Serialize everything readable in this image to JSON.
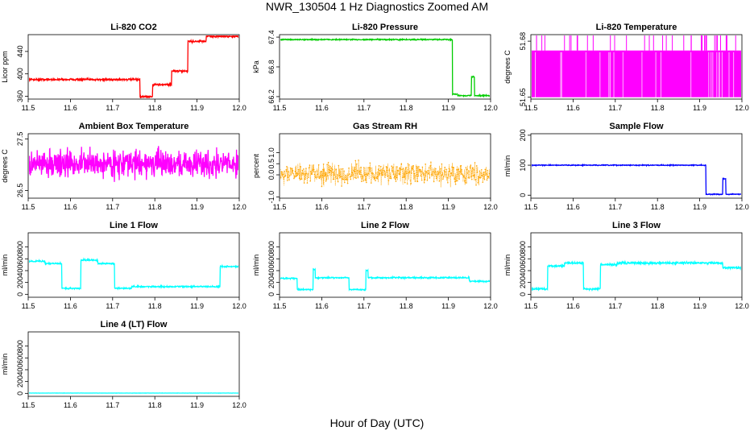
{
  "title": "NWR_130504  1 Hz Diagnostics Zoomed AM",
  "xlabel": "Hour of Day (UTC)",
  "chart_data": [
    {
      "type": "line",
      "title": "Li-820 CO2",
      "ylabel": "Licor ppm",
      "color": "#ff0000",
      "xlim": [
        11.5,
        12.0
      ],
      "ylim": [
        355,
        470
      ],
      "yticks": [
        360,
        400,
        440
      ],
      "ytick_labels": [
        "360",
        "400",
        "440"
      ],
      "xticks": [
        11.5,
        11.6,
        11.7,
        11.8,
        11.9,
        12.0
      ],
      "xtick_labels": [
        "11.5",
        "11.6",
        "11.7",
        "11.8",
        "11.9",
        "12.0"
      ],
      "noise": 1.2,
      "segments": [
        [
          11.5,
          11.765,
          390
        ],
        [
          11.765,
          11.795,
          359
        ],
        [
          11.795,
          11.84,
          381
        ],
        [
          11.84,
          11.878,
          405
        ],
        [
          11.878,
          11.922,
          458
        ],
        [
          11.922,
          12.0,
          467
        ]
      ]
    },
    {
      "type": "line",
      "title": "Li-820 Pressure",
      "ylabel": "kPa",
      "color": "#00cc00",
      "xlim": [
        11.5,
        12.0
      ],
      "ylim": [
        66.15,
        67.45
      ],
      "yticks": [
        66.2,
        66.8,
        67.4
      ],
      "ytick_labels": [
        "66.2",
        "66.8",
        "67.4"
      ],
      "xticks": [
        11.5,
        11.6,
        11.7,
        11.8,
        11.9,
        12.0
      ],
      "xtick_labels": [
        "11.5",
        "11.6",
        "11.7",
        "11.8",
        "11.9",
        "12.0"
      ],
      "noise": 0.008,
      "segments": [
        [
          11.5,
          11.91,
          67.35
        ],
        [
          11.91,
          11.922,
          66.25
        ],
        [
          11.922,
          11.955,
          66.22
        ],
        [
          11.955,
          11.962,
          66.6
        ],
        [
          11.962,
          12.0,
          66.22
        ]
      ]
    },
    {
      "type": "line",
      "title": "Li-820 Temperature",
      "ylabel": "degrees C",
      "color": "#ff00ff",
      "xlim": [
        11.5,
        12.0
      ],
      "ylim": [
        51.649,
        51.6835
      ],
      "yticks": [
        51.65,
        51.68
      ],
      "ytick_labels": [
        "51.65",
        "51.68"
      ],
      "xticks": [
        11.5,
        11.6,
        11.7,
        11.8,
        11.9,
        12.0
      ],
      "xtick_labels": [
        "11.5",
        "11.6",
        "11.7",
        "11.8",
        "11.9",
        "12.0"
      ],
      "band": [
        51.65,
        51.675
      ],
      "spike_top": 51.685
    },
    {
      "type": "line",
      "title": "Ambient Box Temperature",
      "ylabel": "degrees C",
      "color": "#ff00ff",
      "xlim": [
        11.5,
        12.0
      ],
      "ylim": [
        26.35,
        27.6
      ],
      "yticks": [
        26.5,
        27.5
      ],
      "ytick_labels": [
        "26.5",
        "27.5"
      ],
      "xticks": [
        11.5,
        11.6,
        11.7,
        11.8,
        11.9,
        12.0
      ],
      "xtick_labels": [
        "11.5",
        "11.6",
        "11.7",
        "11.8",
        "11.9",
        "12.0"
      ],
      "noise": 0.18,
      "segments": [
        [
          11.5,
          12.0,
          27.02
        ]
      ]
    },
    {
      "type": "scatter",
      "title": "Gas Stream RH",
      "ylabel": "percent",
      "color": "#ffa500",
      "xlim": [
        11.5,
        12.0
      ],
      "ylim": [
        -1.05,
        1.85
      ],
      "yticks": [
        -1.0,
        0.0,
        0.5,
        1.0
      ],
      "ytick_labels": [
        "-1.0",
        "0.0",
        "0.5",
        "1.0"
      ],
      "xticks": [
        11.5,
        11.6,
        11.7,
        11.8,
        11.9,
        12.0
      ],
      "xtick_labels": [
        "11.5",
        "11.6",
        "11.7",
        "11.8",
        "11.9",
        "12.0"
      ],
      "noise": 0.32,
      "segments": [
        [
          11.5,
          12.0,
          0.05
        ]
      ]
    },
    {
      "type": "line",
      "title": "Sample Flow",
      "ylabel": "ml/min",
      "color": "#0000ff",
      "xlim": [
        11.5,
        12.0
      ],
      "ylim": [
        -10,
        205
      ],
      "yticks": [
        0,
        100,
        200
      ],
      "ytick_labels": [
        "0",
        "100",
        "200"
      ],
      "xticks": [
        11.5,
        11.6,
        11.7,
        11.8,
        11.9,
        12.0
      ],
      "xtick_labels": [
        "11.5",
        "11.6",
        "11.7",
        "11.8",
        "11.9",
        "12.0"
      ],
      "noise": 1.0,
      "segments": [
        [
          11.5,
          11.915,
          100
        ],
        [
          11.915,
          11.955,
          3
        ],
        [
          11.955,
          11.962,
          55
        ],
        [
          11.962,
          12.0,
          3
        ]
      ]
    },
    {
      "type": "line",
      "title": "Line 1 Flow",
      "ylabel": "ml/min",
      "color": "#00ffff",
      "xlim": [
        11.5,
        12.0
      ],
      "ylim": [
        -50,
        1040
      ],
      "yticks": [
        0,
        200,
        400,
        600,
        800
      ],
      "ytick_labels": [
        "0",
        "200",
        "400",
        "600",
        "800"
      ],
      "xticks": [
        11.5,
        11.6,
        11.7,
        11.8,
        11.9,
        12.0
      ],
      "xtick_labels": [
        "11.5",
        "11.6",
        "11.7",
        "11.8",
        "11.9",
        "12.0"
      ],
      "noise": 8,
      "segments": [
        [
          11.5,
          11.54,
          560
        ],
        [
          11.54,
          11.58,
          520
        ],
        [
          11.58,
          11.625,
          100
        ],
        [
          11.625,
          11.665,
          580
        ],
        [
          11.665,
          11.705,
          520
        ],
        [
          11.705,
          11.745,
          100
        ],
        [
          11.745,
          11.955,
          130
        ],
        [
          11.955,
          12.0,
          470
        ]
      ]
    },
    {
      "type": "line",
      "title": "Line 2 Flow",
      "ylabel": "ml/min",
      "color": "#00ffff",
      "xlim": [
        11.5,
        12.0
      ],
      "ylim": [
        -50,
        1040
      ],
      "yticks": [
        0,
        200,
        400,
        600,
        800
      ],
      "ytick_labels": [
        "0",
        "200",
        "400",
        "600",
        "800"
      ],
      "xticks": [
        11.5,
        11.6,
        11.7,
        11.8,
        11.9,
        12.0
      ],
      "xtick_labels": [
        "11.5",
        "11.6",
        "11.7",
        "11.8",
        "11.9",
        "12.0"
      ],
      "noise": 8,
      "segments": [
        [
          11.5,
          11.542,
          270
        ],
        [
          11.542,
          11.58,
          80
        ],
        [
          11.58,
          11.585,
          420
        ],
        [
          11.585,
          11.665,
          280
        ],
        [
          11.665,
          11.705,
          80
        ],
        [
          11.705,
          11.71,
          400
        ],
        [
          11.71,
          11.95,
          280
        ],
        [
          11.95,
          12.0,
          220
        ]
      ]
    },
    {
      "type": "line",
      "title": "Line 3 Flow",
      "ylabel": "ml/min",
      "color": "#00ffff",
      "xlim": [
        11.5,
        12.0
      ],
      "ylim": [
        -50,
        1040
      ],
      "yticks": [
        0,
        200,
        400,
        600,
        800
      ],
      "ytick_labels": [
        "0",
        "200",
        "400",
        "600",
        "800"
      ],
      "xticks": [
        11.5,
        11.6,
        11.7,
        11.8,
        11.9,
        12.0
      ],
      "xtick_labels": [
        "11.5",
        "11.6",
        "11.7",
        "11.8",
        "11.9",
        "12.0"
      ],
      "noise": 12,
      "segments": [
        [
          11.5,
          11.54,
          90
        ],
        [
          11.54,
          11.58,
          480
        ],
        [
          11.58,
          11.625,
          530
        ],
        [
          11.625,
          11.665,
          90
        ],
        [
          11.665,
          11.705,
          500
        ],
        [
          11.705,
          11.955,
          530
        ],
        [
          11.955,
          12.0,
          450
        ]
      ]
    },
    {
      "type": "line",
      "title": "Line 4 (LT) Flow",
      "ylabel": "ml/min",
      "color": "#00ffff",
      "xlim": [
        11.5,
        12.0
      ],
      "ylim": [
        -50,
        1040
      ],
      "yticks": [
        0,
        200,
        400,
        600,
        800
      ],
      "ytick_labels": [
        "0",
        "200",
        "400",
        "600",
        "800"
      ],
      "xticks": [
        11.5,
        11.6,
        11.7,
        11.8,
        11.9,
        12.0
      ],
      "xtick_labels": [
        "11.5",
        "11.6",
        "11.7",
        "11.8",
        "11.9",
        "12.0"
      ],
      "noise": 1,
      "segments": [
        [
          11.5,
          12.0,
          5
        ]
      ]
    }
  ]
}
